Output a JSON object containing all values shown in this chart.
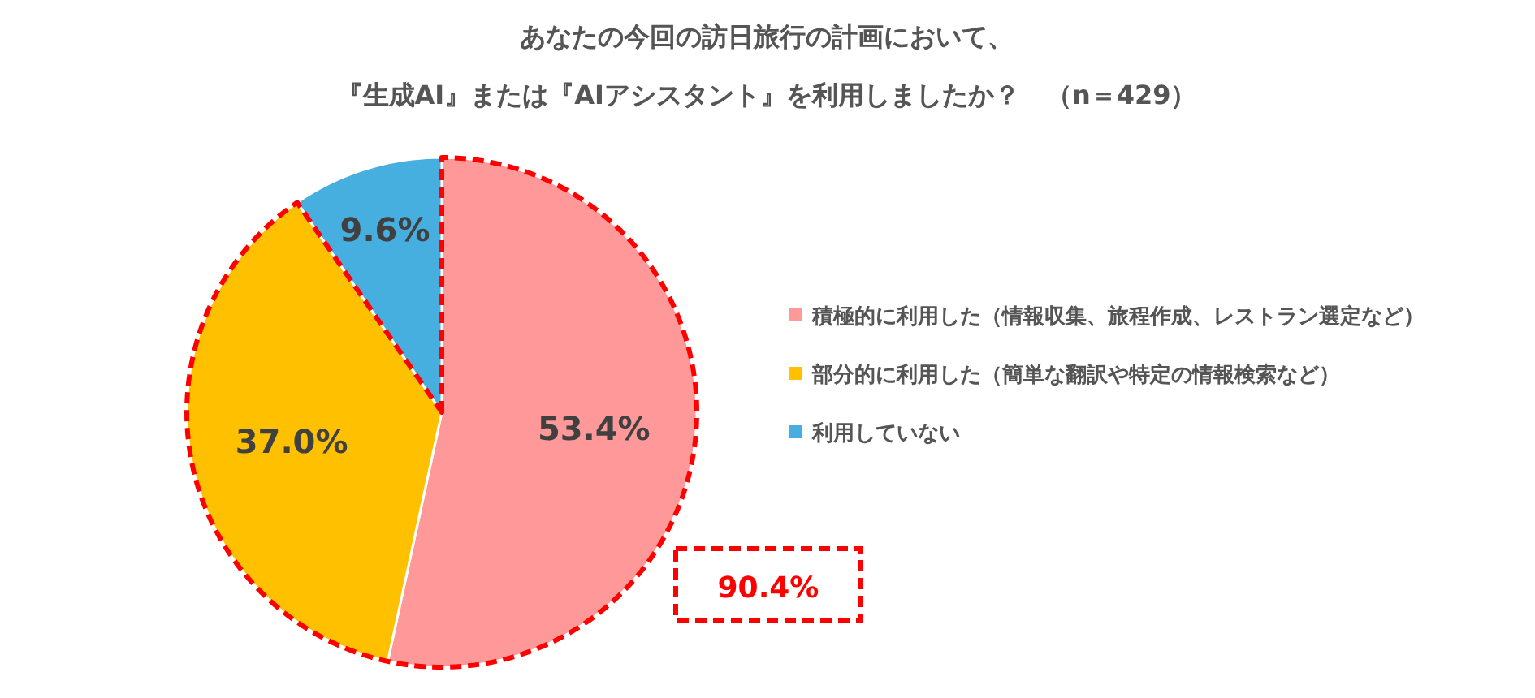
{
  "chart_data": {
    "type": "pie",
    "title": "あなたの今回の訪日旅行の計画において、",
    "subtitle": "『生成AI』または『AIアシスタント』を利用しましたか？　（n＝429）",
    "categories": [
      "積極的に利用した（情報収集、旅程作成、レストラン選定など）",
      "部分的に利用した（簡単な翻訳や特定の情報検索など）",
      "利用していない"
    ],
    "values": [
      53.4,
      37.0,
      9.6
    ],
    "value_labels": [
      "53.4%",
      "37.0%",
      "9.6%"
    ],
    "colors": [
      "#ff9999",
      "#ffc000",
      "#47aee0"
    ],
    "legend": "right",
    "annotations": [
      "90.4%"
    ]
  }
}
